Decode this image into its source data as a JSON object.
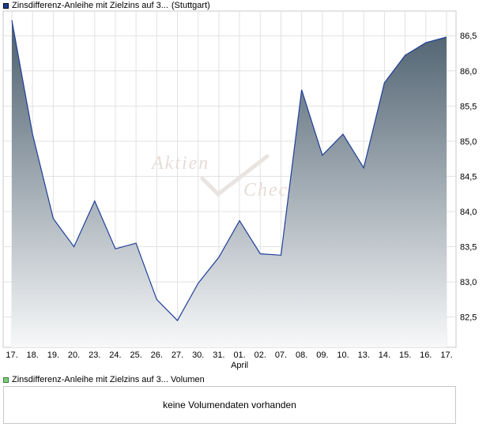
{
  "price_legend": {
    "label": "Zinsdifferenz-Anleihe mit Zielzins auf 3...",
    "exchange": "(Stuttgart)",
    "swatch_color": "#1f3f99"
  },
  "volume_legend": {
    "label": "Zinsdifferenz-Anleihe mit Zielzins auf 3... Volumen",
    "swatch_color": "#7ed07e"
  },
  "volume_panel": {
    "message": "keine Volumendaten vorhanden"
  },
  "watermark": {
    "line1": "Aktien",
    "line2": "Check"
  },
  "chart_data": {
    "type": "area",
    "x": [
      "17.",
      "18.",
      "19.",
      "20.",
      "23.",
      "24.",
      "25.",
      "26.",
      "27.",
      "30.",
      "31.",
      "01.",
      "02.",
      "07.",
      "08.",
      "09.",
      "10.",
      "13.",
      "14.",
      "15.",
      "16.",
      "17."
    ],
    "x_month_label": {
      "index": 11,
      "text": "April"
    },
    "series": [
      {
        "values": [
          86.72,
          85.1,
          83.9,
          83.5,
          84.15,
          83.47,
          83.55,
          82.75,
          82.45,
          82.98,
          83.35,
          83.87,
          83.4,
          83.38,
          85.73,
          84.8,
          85.1,
          84.62,
          85.83,
          86.22,
          86.4,
          86.48
        ],
        "line_color": "#1f3f99",
        "fill_top_color": "#4b5e6d",
        "fill_bottom_color": "#f7f8f9"
      }
    ],
    "y_ticks": [
      82.5,
      83.0,
      83.5,
      84.0,
      84.5,
      85.0,
      85.5,
      86.0,
      86.5
    ],
    "y_tick_labels": [
      "82,5",
      "83,0",
      "83,5",
      "84,0",
      "84,5",
      "85,0",
      "85,5",
      "86,0",
      "86,5"
    ],
    "ylim": [
      82.07,
      86.85
    ],
    "y_axis_position": "right",
    "grid": true,
    "title": "",
    "xlabel": "",
    "ylabel": ""
  }
}
